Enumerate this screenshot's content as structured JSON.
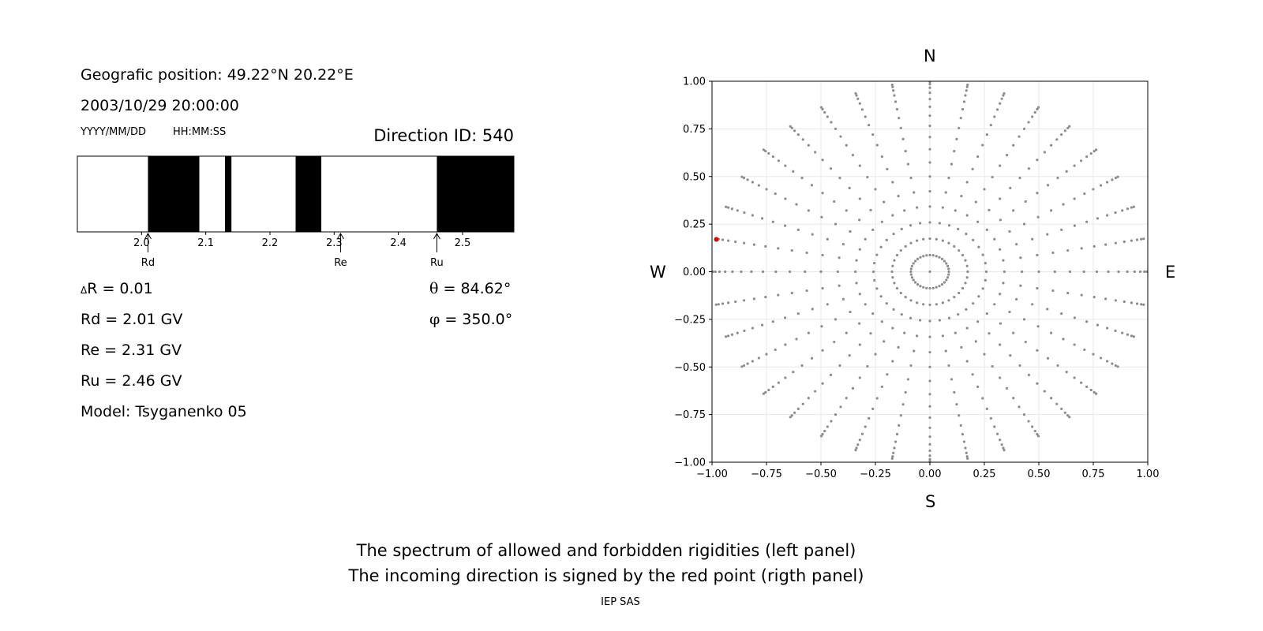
{
  "left_panel": {
    "position_text": "Geografic position: 49.22°N 20.22°E",
    "datetime_text": "2003/10/29 20:00:00",
    "date_format_label": "YYYY/MM/DD",
    "time_format_label": "HH:MM:SS",
    "direction_id_text": "Direction ID: 540",
    "delta_r_symbol": "Δ",
    "delta_r_text": "R = 0.01",
    "rd_text": "Rd = 2.01 GV",
    "re_text": "Re = 2.31 GV",
    "ru_text": "Ru = 2.46 GV",
    "model_text": "Model: Tsyganenko 05",
    "theta_symbol": "θ",
    "theta_text": " = 84.62°",
    "phi_symbol": "φ",
    "phi_text": " = 350.0°"
  },
  "right_panel": {
    "north_label": "N",
    "south_label": "S",
    "west_label": "W",
    "east_label": "E"
  },
  "caption": {
    "line1": "The spectrum of allowed and forbidden rigidities (left panel)",
    "line2": "The incoming direction is signed by the red point (rigth panel)",
    "credit": "IEP SAS"
  },
  "chart_data": [
    {
      "type": "spectrum",
      "xlim": [
        1.9,
        2.58
      ],
      "xticks": [
        "2.0",
        "2.1",
        "2.2",
        "2.3",
        "2.4",
        "2.5"
      ],
      "forbidden_bands": [
        [
          2.01,
          2.09
        ],
        [
          2.13,
          2.14
        ],
        [
          2.24,
          2.28
        ],
        [
          2.46,
          2.58
        ]
      ],
      "markers": [
        {
          "label": "Rd",
          "x": 2.01
        },
        {
          "label": "Re",
          "x": 2.31
        },
        {
          "label": "Ru",
          "x": 2.46
        }
      ],
      "colors": {
        "forbidden": "#000000",
        "allowed": "#ffffff"
      }
    },
    {
      "type": "scatter",
      "xlim": [
        -1.0,
        1.0
      ],
      "ylim": [
        -1.0,
        1.0
      ],
      "xticks": [
        "−1.00",
        "−0.75",
        "−0.50",
        "−0.25",
        "0.00",
        "0.25",
        "0.50",
        "0.75",
        "1.00"
      ],
      "yticks": [
        "−1.00",
        "−0.75",
        "−0.50",
        "−0.25",
        "0.00",
        "0.25",
        "0.50",
        "0.75",
        "1.00"
      ],
      "grid": true,
      "directions": {
        "azimuth_step_deg": 10,
        "zenith_step_deg": 5,
        "zenith_max_deg": 85,
        "projection": "sin(zenith)"
      },
      "highlight": {
        "x": -0.98,
        "y": 0.17,
        "color": "#e00000"
      },
      "point_color": "#8c8c8c"
    }
  ]
}
